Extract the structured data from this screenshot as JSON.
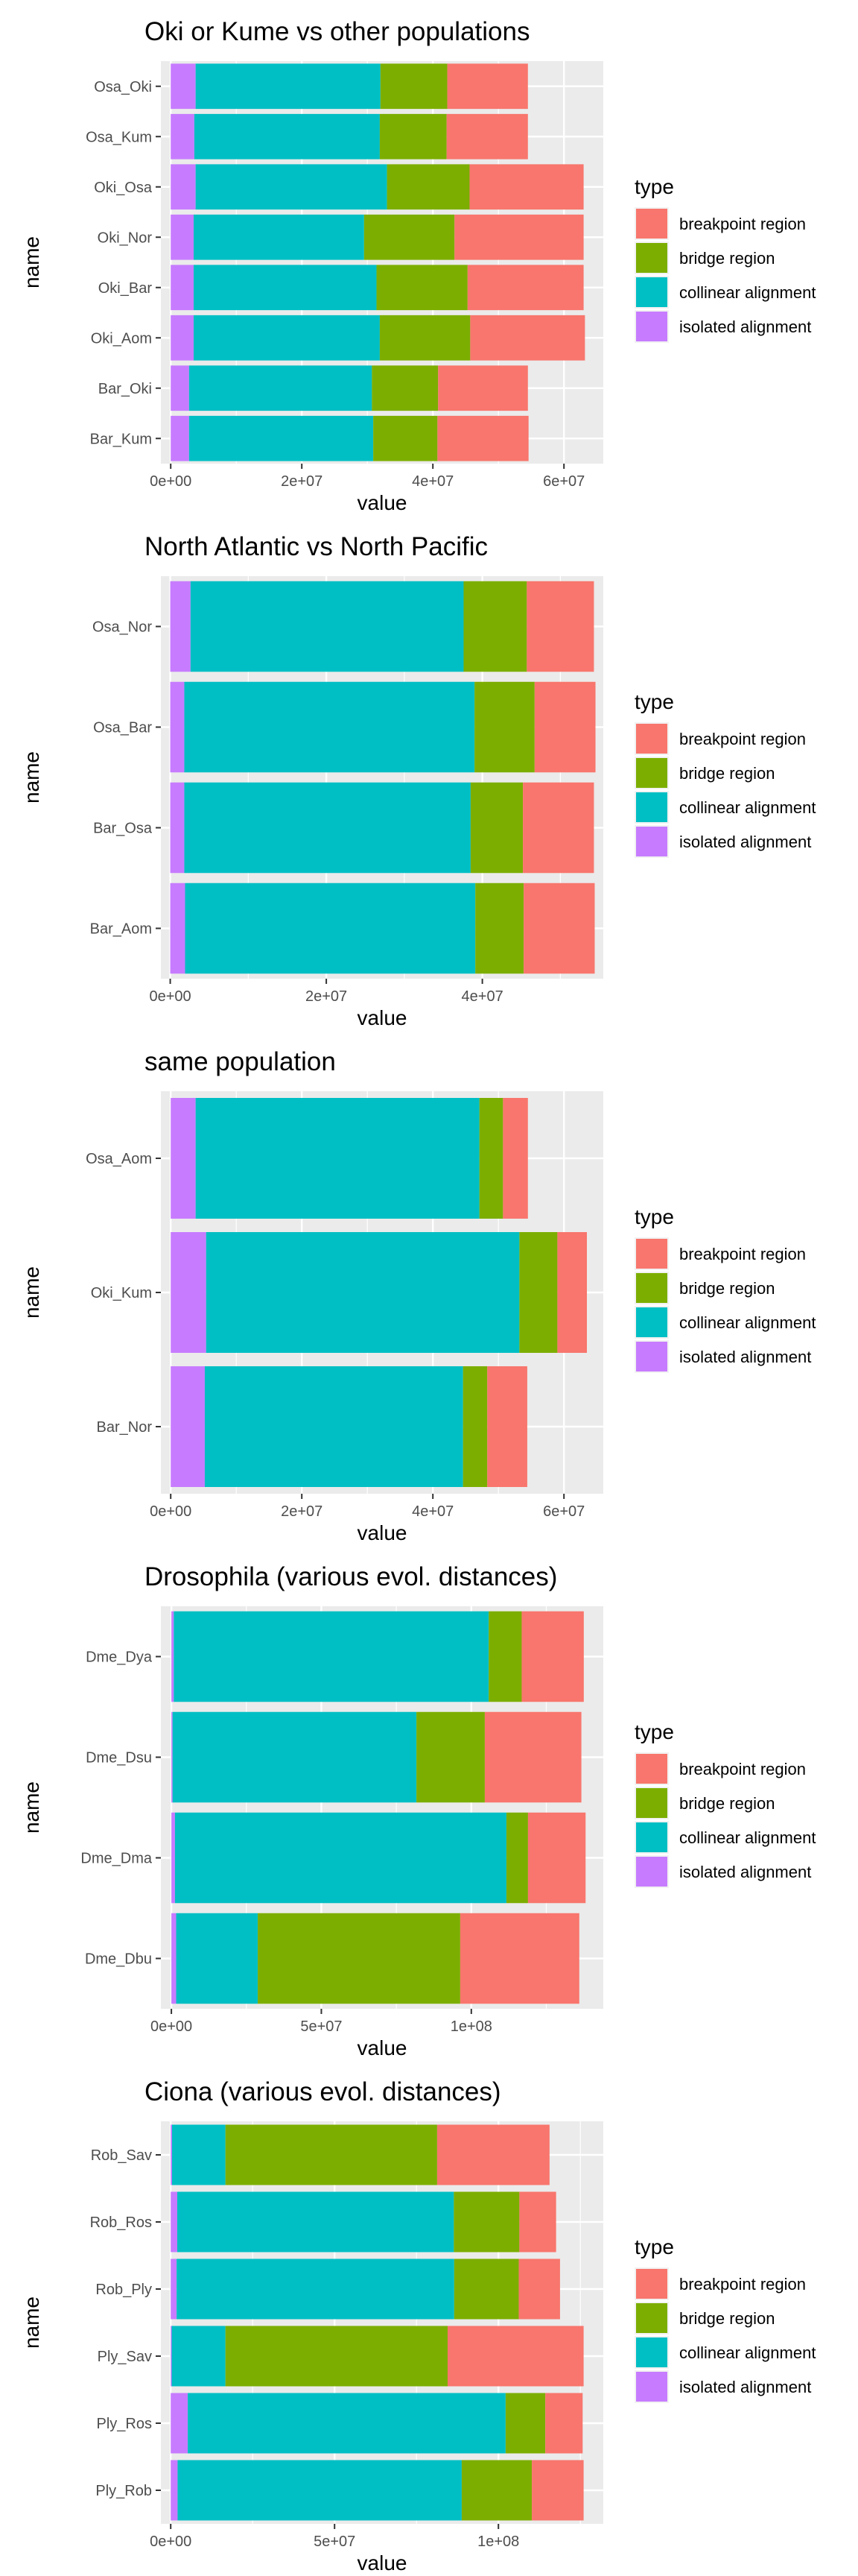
{
  "legend": {
    "title": "type",
    "items": [
      {
        "key": "breakpoint",
        "label": "breakpoint region",
        "color": "#F8766D"
      },
      {
        "key": "bridge",
        "label": "bridge region",
        "color": "#7CAE00"
      },
      {
        "key": "collinear",
        "label": "collinear alignment",
        "color": "#00BFC4"
      },
      {
        "key": "isolated",
        "label": "isolated alignment",
        "color": "#C77CFF"
      }
    ]
  },
  "chart_data": [
    {
      "type": "bar",
      "orientation": "horizontal",
      "stacked": true,
      "title": "Oki or Kume vs other populations",
      "xlabel": "value",
      "ylabel": "name",
      "xlim": [
        -1500000,
        66000000
      ],
      "xticks": [
        0,
        20000000,
        40000000,
        60000000
      ],
      "xtick_labels": [
        "0e+00",
        "2e+07",
        "4e+07",
        "6e+07"
      ],
      "categories": [
        "Osa_Oki",
        "Osa_Kum",
        "Oki_Osa",
        "Oki_Nor",
        "Oki_Bar",
        "Oki_Aom",
        "Bar_Oki",
        "Bar_Kum"
      ],
      "series": [
        {
          "name": "isolated alignment",
          "key": "isolated",
          "values": [
            3800000,
            3600000,
            3800000,
            3500000,
            3500000,
            3500000,
            2800000,
            2800000
          ]
        },
        {
          "name": "collinear alignment",
          "key": "collinear",
          "values": [
            28200000,
            28300000,
            29200000,
            26000000,
            27900000,
            28400000,
            27900000,
            28100000
          ]
        },
        {
          "name": "bridge region",
          "key": "bridge",
          "values": [
            10200000,
            10200000,
            12600000,
            13800000,
            13900000,
            13800000,
            10100000,
            9800000
          ]
        },
        {
          "name": "breakpoint region",
          "key": "breakpoint",
          "values": [
            12300000,
            12400000,
            17400000,
            19700000,
            17700000,
            17500000,
            13700000,
            13900000
          ]
        }
      ]
    },
    {
      "type": "bar",
      "orientation": "horizontal",
      "stacked": true,
      "title": "North Atlantic vs North Pacific",
      "xlabel": "value",
      "ylabel": "name",
      "xlim": [
        -1200000,
        55500000
      ],
      "xticks": [
        0,
        20000000,
        40000000
      ],
      "xtick_labels": [
        "0e+00",
        "2e+07",
        "4e+07"
      ],
      "categories": [
        "Osa_Nor",
        "Osa_Bar",
        "Bar_Osa",
        "Bar_Aom"
      ],
      "series": [
        {
          "name": "isolated alignment",
          "key": "isolated",
          "values": [
            2600000,
            1800000,
            1800000,
            1900000
          ]
        },
        {
          "name": "collinear alignment",
          "key": "collinear",
          "values": [
            35000000,
            37200000,
            36700000,
            37200000
          ]
        },
        {
          "name": "bridge region",
          "key": "bridge",
          "values": [
            8100000,
            7700000,
            6700000,
            6200000
          ]
        },
        {
          "name": "breakpoint region",
          "key": "breakpoint",
          "values": [
            8600000,
            7800000,
            9100000,
            9100000
          ]
        }
      ]
    },
    {
      "type": "bar",
      "orientation": "horizontal",
      "stacked": true,
      "title": "same population",
      "xlabel": "value",
      "ylabel": "name",
      "xlim": [
        -1500000,
        66000000
      ],
      "xticks": [
        0,
        20000000,
        40000000,
        60000000
      ],
      "xtick_labels": [
        "0e+00",
        "2e+07",
        "4e+07",
        "6e+07"
      ],
      "categories": [
        "Osa_Aom",
        "Oki_Kum",
        "Bar_Nor"
      ],
      "series": [
        {
          "name": "isolated alignment",
          "key": "isolated",
          "values": [
            3800000,
            5400000,
            5200000
          ]
        },
        {
          "name": "collinear alignment",
          "key": "collinear",
          "values": [
            43300000,
            47800000,
            39400000
          ]
        },
        {
          "name": "bridge region",
          "key": "bridge",
          "values": [
            3600000,
            5800000,
            3700000
          ]
        },
        {
          "name": "breakpoint region",
          "key": "breakpoint",
          "values": [
            3800000,
            4500000,
            6100000
          ]
        }
      ]
    },
    {
      "type": "bar",
      "orientation": "horizontal",
      "stacked": true,
      "title": "Drosophila (various evol. distances)",
      "xlabel": "value",
      "ylabel": "name",
      "xlim": [
        -3500000,
        144000000
      ],
      "xticks": [
        0,
        50000000,
        100000000
      ],
      "xtick_labels": [
        "0e+00",
        "5e+07",
        "1e+08"
      ],
      "categories": [
        "Dme_Dya",
        "Dme_Dsu",
        "Dme_Dma",
        "Dme_Dbu"
      ],
      "series": [
        {
          "name": "isolated alignment",
          "key": "isolated",
          "values": [
            800000,
            400000,
            1200000,
            1600000
          ]
        },
        {
          "name": "collinear alignment",
          "key": "collinear",
          "values": [
            105000000,
            81300000,
            110500000,
            27200000
          ]
        },
        {
          "name": "bridge region",
          "key": "bridge",
          "values": [
            11000000,
            22800000,
            7200000,
            67500000
          ]
        },
        {
          "name": "breakpoint region",
          "key": "breakpoint",
          "values": [
            20700000,
            32200000,
            19200000,
            39700000
          ]
        }
      ]
    },
    {
      "type": "bar",
      "orientation": "horizontal",
      "stacked": true,
      "title": "Ciona (various evol. distances)",
      "xlabel": "value",
      "ylabel": "name",
      "xlim": [
        -3000000,
        132000000
      ],
      "xticks": [
        0,
        50000000,
        100000000
      ],
      "xtick_labels": [
        "0e+00",
        "5e+07",
        "1e+08"
      ],
      "categories": [
        "Rob_Sav",
        "Rob_Ros",
        "Rob_Ply",
        "Ply_Sav",
        "Ply_Ros",
        "Ply_Rob"
      ],
      "series": [
        {
          "name": "isolated alignment",
          "key": "isolated",
          "values": [
            400000,
            2000000,
            1800000,
            300000,
            5200000,
            2100000
          ]
        },
        {
          "name": "collinear alignment",
          "key": "collinear",
          "values": [
            16300000,
            84400000,
            84700000,
            16400000,
            97000000,
            86700000
          ]
        },
        {
          "name": "bridge region",
          "key": "bridge",
          "values": [
            64600000,
            20000000,
            19700000,
            67800000,
            12100000,
            21400000
          ]
        },
        {
          "name": "breakpoint region",
          "key": "breakpoint",
          "values": [
            34300000,
            11200000,
            12600000,
            41500000,
            11400000,
            15800000
          ]
        }
      ]
    }
  ]
}
